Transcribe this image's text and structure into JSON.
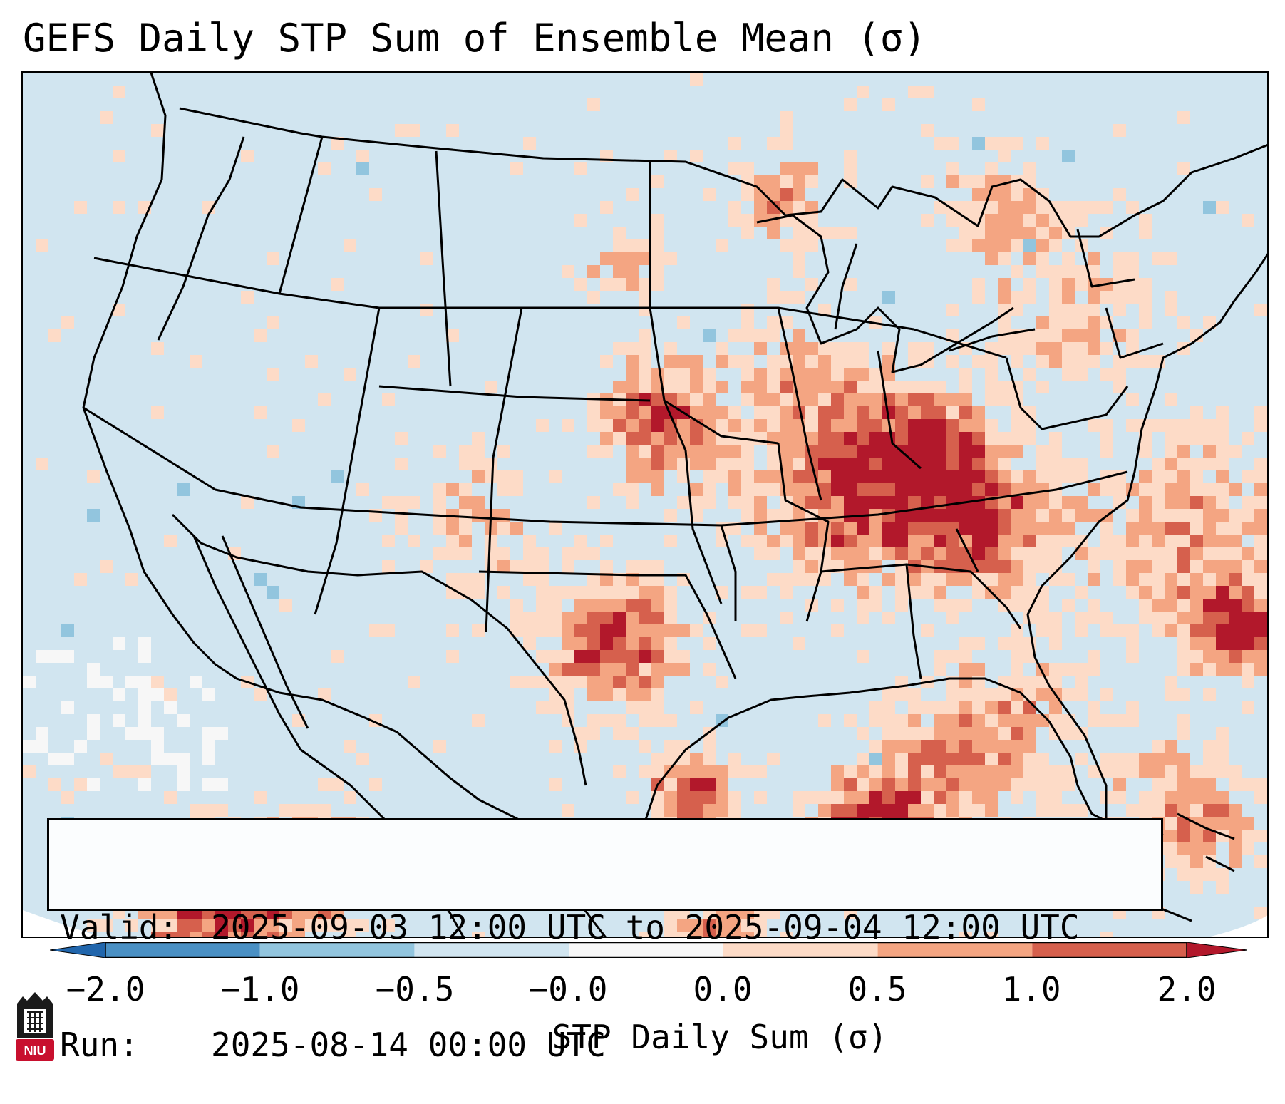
{
  "title": "GEFS Daily STP Sum of Ensemble Mean (σ)",
  "info": {
    "valid_label": "Valid:",
    "valid_value": "2025-09-03 12:00 UTC to 2025-09-04 12:00 UTC",
    "run_label": "Run:",
    "run_value": "2025-08-14 00:00 UTC"
  },
  "colorbar": {
    "label": "STP Daily Sum (σ)",
    "ticks": [
      "−2.0",
      "−1.0",
      "−0.5",
      "−0.0",
      "0.0",
      "0.5",
      "1.0",
      "2.0"
    ],
    "bins": [
      {
        "from": "−2.0",
        "to": "−1.0",
        "color": "#4a90c4"
      },
      {
        "from": "−1.0",
        "to": "−0.5",
        "color": "#92c5de"
      },
      {
        "from": "−0.5",
        "to": "−0.0",
        "color": "#d1e5f0"
      },
      {
        "from": "−0.0",
        "to": "0.0",
        "color": "#f7f7f7"
      },
      {
        "from": "0.0",
        "to": "0.5",
        "color": "#fddbc7"
      },
      {
        "from": "0.5",
        "to": "1.0",
        "color": "#f4a582"
      },
      {
        "from": "1.0",
        "to": "2.0",
        "color": "#d6604d"
      }
    ],
    "under_color": "#2166ac",
    "over_color": "#b2182b"
  },
  "map": {
    "background_color": "#d1e5f0",
    "line_color": "#000000",
    "features": [
      "state-borders",
      "coastlines",
      "country-borders"
    ]
  },
  "logo": {
    "text": "NIU",
    "color": "#c8102e"
  }
}
